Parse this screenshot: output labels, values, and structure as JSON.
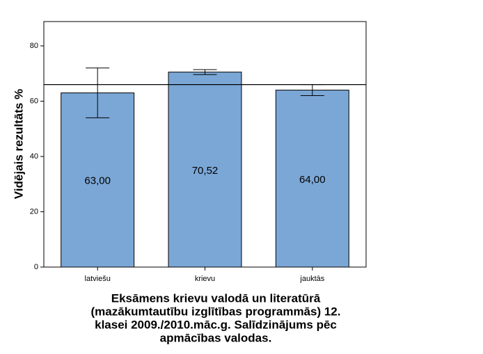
{
  "chart_data": {
    "type": "bar",
    "title": [
      "Eksāmens krievu valodā un literatūrā",
      "(mazākumtautību izglītības programmās) 12.",
      "klasei 2009./2010.māc.g. Salīdzinājums pēc",
      "apmācības valodas."
    ],
    "y_label": "Vidējais rezultāts %",
    "categories": [
      "latviešu",
      "krievu",
      "jauktās"
    ],
    "values": [
      63,
      70.52,
      64
    ],
    "value_labels": [
      "63,00",
      "70,52",
      "64,00"
    ],
    "errors": [
      9,
      0.9,
      2
    ],
    "reference_line": 66,
    "color": "#7ba7d6",
    "ylim": [
      0,
      88.8
    ],
    "yticks": [
      0,
      20,
      40,
      60,
      80
    ],
    "grid": false
  }
}
